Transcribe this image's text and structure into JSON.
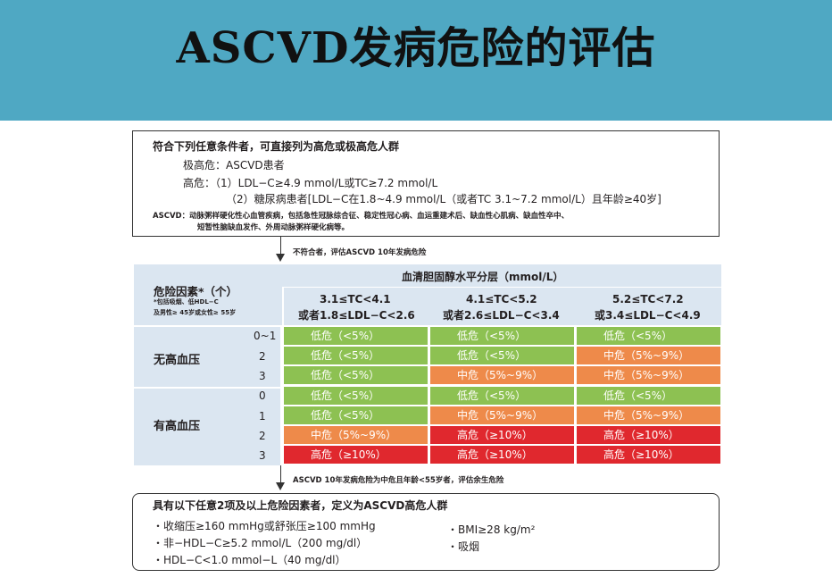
{
  "title": "ASCVD发病危险的评估",
  "criteria_box": {
    "heading": "符合下列任意条件者，可直接列为高危或极高危人群",
    "very_high": "极高危：ASCVD患者",
    "high_1": "高危：（1）LDL−C≥4.9 mmol/L或TC≥7.2 mmol/L",
    "high_2": "（2）糖尿病患者[LDL−C在1.8~4.9 mmol/L（或者TC 3.1~7.2 mmol/L）且年龄≥40岁]",
    "ascvd_def_1": "ASCVD：动脉粥样硬化性心血管疾病，包括急性冠脉综合征、稳定性冠心病、血运重建术后、缺血性心肌病、缺血性卒中、",
    "ascvd_def_2": "短暂性脑缺血发作、外周动脉粥样硬化病等。"
  },
  "arrow1_note": "不符合者，评估ASCVD 10年发病危险",
  "arrow2_note": "ASCVD 10年发病危险为中危且年龄<55岁者，评估余生危险",
  "table": {
    "risk_factor_header": "危险因素*（个）",
    "risk_factor_note_1": "*包括吸烟、低HDL−C",
    "risk_factor_note_2": "及男性≥ 45岁或女性≥ 55岁",
    "chol_header": "血清胆固醇水平分层（mmol/L）",
    "columns": [
      {
        "line1": "3.1≤TC<4.1",
        "line2": "或者1.8≤LDL−C<2.6"
      },
      {
        "line1": "4.1≤TC<5.2",
        "line2": "或者2.6≤LDL−C<3.4"
      },
      {
        "line1": "5.2≤TC<7.2",
        "line2": "或3.4≤LDL−C<4.9"
      }
    ],
    "groups": [
      {
        "label": "无高血压"
      },
      {
        "label": "有高血压"
      }
    ],
    "rows": [
      {
        "count": "0~1",
        "cells": [
          "低危（<5%）",
          "低危（<5%）",
          "低危（<5%）"
        ],
        "levels": [
          "low",
          "low",
          "low"
        ]
      },
      {
        "count": "2",
        "cells": [
          "低危（<5%）",
          "低危（<5%）",
          "中危（5%~9%）"
        ],
        "levels": [
          "low",
          "low",
          "mid"
        ]
      },
      {
        "count": "3",
        "cells": [
          "低危（<5%）",
          "中危（5%~9%）",
          "中危（5%~9%）"
        ],
        "levels": [
          "low",
          "mid",
          "mid"
        ]
      },
      {
        "count": "0",
        "cells": [
          "低危（<5%）",
          "低危（<5%）",
          "低危（<5%）"
        ],
        "levels": [
          "low",
          "low",
          "low"
        ]
      },
      {
        "count": "1",
        "cells": [
          "低危（<5%）",
          "中危（5%~9%）",
          "中危（5%~9%）"
        ],
        "levels": [
          "low",
          "mid",
          "mid"
        ]
      },
      {
        "count": "2",
        "cells": [
          "中危（5%~9%）",
          "高危（≥10%）",
          "高危（≥10%）"
        ],
        "levels": [
          "mid",
          "high",
          "high"
        ]
      },
      {
        "count": "3",
        "cells": [
          "高危（≥10%）",
          "高危（≥10%）",
          "高危（≥10%）"
        ],
        "levels": [
          "high",
          "high",
          "high"
        ]
      }
    ],
    "colors": {
      "low": "#8dc152",
      "mid": "#ee8a4a",
      "high": "#e0282e",
      "header_bg": "#dbe6f1"
    }
  },
  "lifetime_box": {
    "heading": "具有以下任意2项及以上危险因素者，定义为ASCVD高危人群",
    "items_left": [
      "・收缩压≥160 mmHg或舒张压≥100 mmHg",
      "・非−HDL−C≥5.2 mmol/L（200 mg/dl）",
      "・HDL−C<1.0 mmol−L（40 mg/dl）"
    ],
    "items_right": [
      "・BMI≥28 kg/m²",
      "・吸烟"
    ]
  }
}
